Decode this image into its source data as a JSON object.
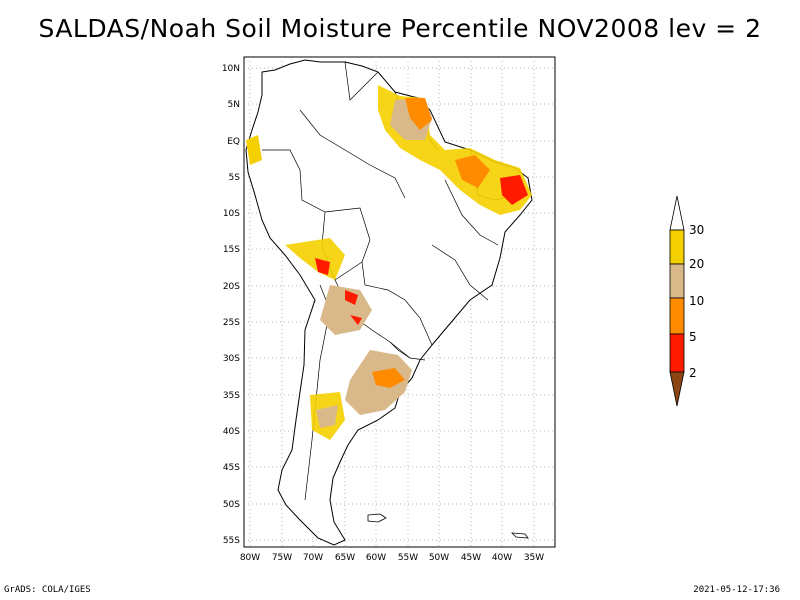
{
  "title": "SALDAS/Noah Soil Moisture Percentile NOV2008 lev = 2",
  "footer": {
    "left": "GrADS: COLA/IGES",
    "right": "2021-05-12-17:36"
  },
  "map": {
    "lat_labels": [
      "10N",
      "5N",
      "EQ",
      "5S",
      "10S",
      "15S",
      "20S",
      "25S",
      "30S",
      "35S",
      "40S",
      "45S",
      "50S",
      "55S"
    ],
    "lon_labels": [
      "80W",
      "75W",
      "70W",
      "65W",
      "60W",
      "55W",
      "50W",
      "45W",
      "40W",
      "35W"
    ],
    "grid": true,
    "colors": {
      "land_outline": "#000000",
      "grid": "#a0a0a0"
    }
  },
  "colorbar": {
    "labels": [
      "30",
      "20",
      "10",
      "5",
      "2"
    ],
    "colors": [
      "#ffffff",
      "#f5d000",
      "#d9b98a",
      "#ff8c00",
      "#ff1a00",
      "#8b4513"
    ]
  }
}
